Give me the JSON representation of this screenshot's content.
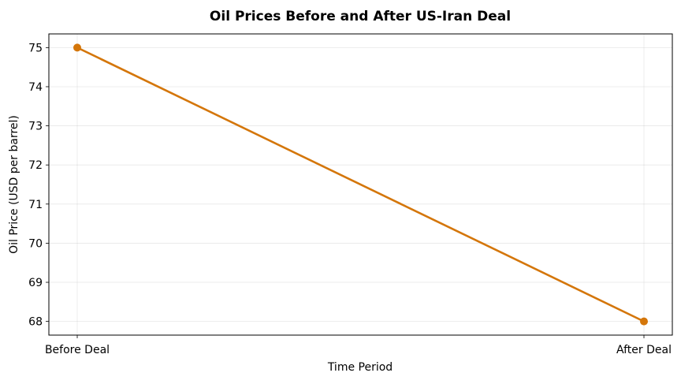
{
  "chart_data": {
    "type": "line",
    "title": "Oil Prices Before and After US-Iran Deal",
    "xlabel": "Time Period",
    "ylabel": "Oil Price (USD per barrel)",
    "categories": [
      "Before Deal",
      "After Deal"
    ],
    "series": [
      {
        "values": [
          75,
          68
        ],
        "color": "#d4760a"
      }
    ],
    "ylim": [
      67.65,
      75.35
    ],
    "yticks": [
      "68",
      "69",
      "70",
      "71",
      "72",
      "73",
      "74",
      "75"
    ],
    "grid": true,
    "legend": "none"
  }
}
